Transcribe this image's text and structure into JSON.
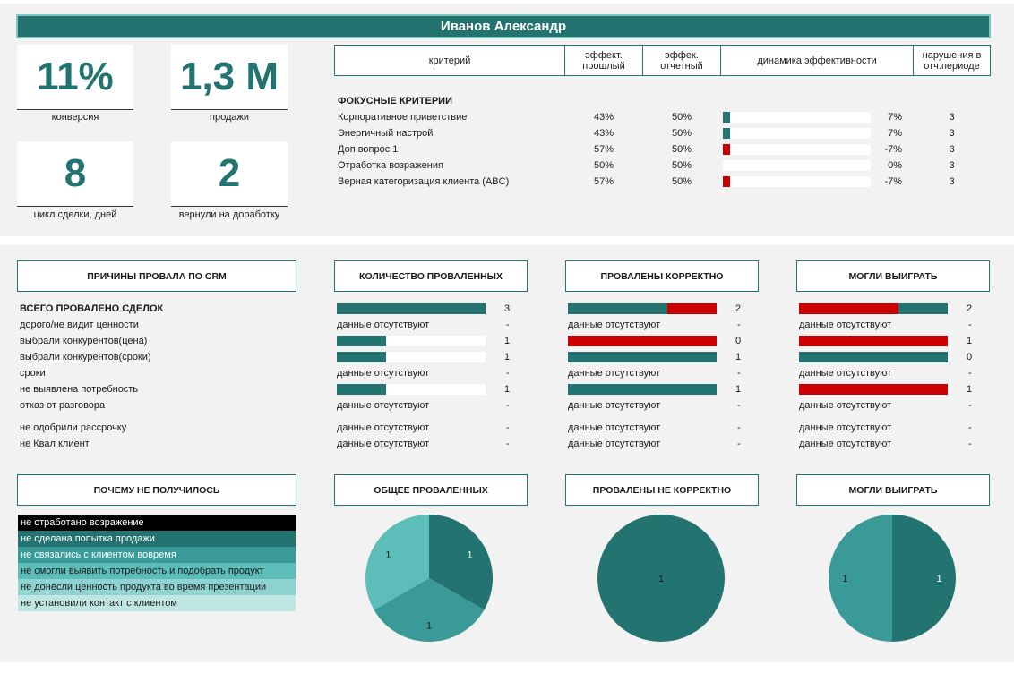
{
  "title": "Иванов Александр",
  "kpis": [
    {
      "value": "11%",
      "label": "конверсия"
    },
    {
      "value": "1,3 М",
      "label": "продажи"
    },
    {
      "value": "8",
      "label": "цикл сделки, дней"
    },
    {
      "value": "2",
      "label": "вернули на доработку"
    }
  ],
  "criteria_table": {
    "headers": [
      "критерий",
      "эффект. прошлый",
      "эффек. отчетный",
      "динамика эффективности",
      "нарушения в отч.периоде"
    ],
    "section_title": "ФОКУСНЫЕ КРИТЕРИИ",
    "rows": [
      {
        "name": "Корпоративное приветствие",
        "prev": "43%",
        "curr": "50%",
        "dyn": "7%",
        "dyn_value": 7,
        "viol": "3"
      },
      {
        "name": "Энергичный настрой",
        "prev": "43%",
        "curr": "50%",
        "dyn": "7%",
        "dyn_value": 7,
        "viol": "3"
      },
      {
        "name": "Доп вопрос 1",
        "prev": "57%",
        "curr": "50%",
        "dyn": "-7%",
        "dyn_value": -7,
        "viol": "3"
      },
      {
        "name": "Отработка возражения",
        "prev": "50%",
        "curr": "50%",
        "dyn": "0%",
        "dyn_value": 0,
        "viol": "3"
      },
      {
        "name": "Верная категоризация клиента (ABC)",
        "prev": "57%",
        "curr": "50%",
        "dyn": "-7%",
        "dyn_value": -7,
        "viol": "3"
      }
    ]
  },
  "crm": {
    "headers": [
      "ПРИЧИНЫ ПРОВАЛА ПО CRM",
      "КОЛИЧЕСТВО ПРОВАЛЕННЫХ",
      "ПРОВАЛЕНЫ КОРРЕКТНО",
      "МОГЛИ ВЫИГРАТЬ"
    ],
    "no_data_label": "данные отсутствуют",
    "dash": "-",
    "rows": [
      {
        "reason": "ВСЕГО ПРОВАЛЕНО СДЕЛОК",
        "total": true,
        "count": {
          "value": "3",
          "fill": 1.0
        },
        "correct": {
          "value": "2",
          "fill": 0.67
        },
        "could_win": {
          "value": "2",
          "fill": 0.67
        }
      },
      {
        "reason": "дорого/не видит ценности",
        "count": null,
        "correct": null,
        "could_win": null
      },
      {
        "reason": "выбрали конкурентов(цена)",
        "count": {
          "value": "1",
          "fill": 0.33
        },
        "correct": {
          "value": "0",
          "fill": 0.0
        },
        "could_win": {
          "value": "1",
          "fill": 1.0
        }
      },
      {
        "reason": "выбрали конкурентов(сроки)",
        "count": {
          "value": "1",
          "fill": 0.33
        },
        "correct": {
          "value": "1",
          "fill": 1.0
        },
        "could_win": {
          "value": "0",
          "fill": 0.0
        }
      },
      {
        "reason": "сроки",
        "count": null,
        "correct": null,
        "could_win": null
      },
      {
        "reason": "не выявлена потребность",
        "count": {
          "value": "1",
          "fill": 0.33
        },
        "correct": {
          "value": "1",
          "fill": 1.0
        },
        "could_win": {
          "value": "1",
          "fill": 1.0
        }
      },
      {
        "reason": "отказ от разговора",
        "count": null,
        "correct": null,
        "could_win": null
      },
      {
        "reason": "не одобрили рассрочку",
        "count": null,
        "correct": null,
        "could_win": null
      },
      {
        "reason": "не Квал клиент",
        "count": null,
        "correct": null,
        "could_win": null
      }
    ]
  },
  "why": {
    "header": "ПОЧЕМУ НЕ ПОЛУЧИЛОСЬ",
    "items": [
      {
        "label": "не отработано возражение",
        "color": "#000000",
        "text_color": "#ffffff"
      },
      {
        "label": "не сделана попытка продажи",
        "color": "#237470",
        "text_color": "#ffffff"
      },
      {
        "label": "не связались с клиентом вовремя",
        "color": "#3a9a97",
        "text_color": "#ffffff"
      },
      {
        "label": "не смогли выявить потребность и подобрать продукт",
        "color": "#5dbdb9",
        "text_color": "#1a1a1a"
      },
      {
        "label": "не донесли ценность продукта во время презентации",
        "color": "#8fd3d0",
        "text_color": "#1a1a1a"
      },
      {
        "label": "не установили контакт с клиентом",
        "color": "#bfe6e3",
        "text_color": "#1a1a1a"
      }
    ]
  },
  "chart_data": [
    {
      "type": "pie",
      "title": "ОБЩЕЕ ПРОВАЛЕННЫХ",
      "slices": [
        {
          "label": "1",
          "value": 1,
          "color": "#237470"
        },
        {
          "label": "1",
          "value": 1,
          "color": "#3a9a97"
        },
        {
          "label": "1",
          "value": 1,
          "color": "#5dbdb9"
        }
      ]
    },
    {
      "type": "pie",
      "title": "ПРОВАЛЕНЫ НЕ КОРРЕКТНО",
      "slices": [
        {
          "label": "1",
          "value": 1,
          "color": "#237470"
        }
      ]
    },
    {
      "type": "pie",
      "title": "МОГЛИ ВЫИГРАТЬ",
      "slices": [
        {
          "label": "1",
          "value": 1,
          "color": "#237470"
        },
        {
          "label": "1",
          "value": 1,
          "color": "#3a9a97"
        }
      ]
    }
  ],
  "colors": {
    "accent": "#237470",
    "negative": "#cc0000",
    "accent_light": "#7fc7c1"
  }
}
